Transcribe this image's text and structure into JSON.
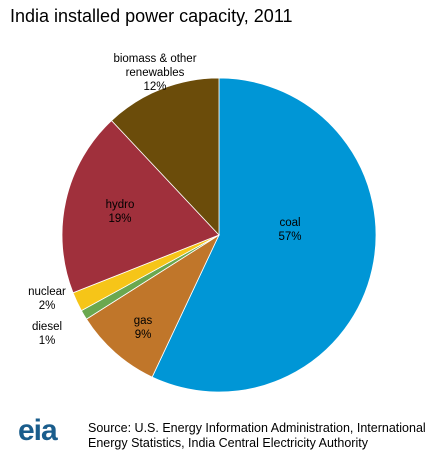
{
  "chart_data": {
    "type": "pie",
    "title": "India installed power capacity, 2011",
    "categories": [
      "coal",
      "gas",
      "diesel",
      "nuclear",
      "hydro",
      "biomass & other renewables"
    ],
    "values": [
      57,
      9,
      1,
      2,
      19,
      12
    ],
    "value_labels": [
      "57%",
      "9%",
      "1%",
      "2%",
      "19%",
      "12%"
    ],
    "colors": [
      "#0096d6",
      "#c0762a",
      "#6aa84f",
      "#f6c518",
      "#a0303c",
      "#6b4c0a"
    ],
    "source": "Source: U.S. Energy Information Administration, International Energy Statistics, India Central  Electricity Authority",
    "logo": "eia"
  }
}
